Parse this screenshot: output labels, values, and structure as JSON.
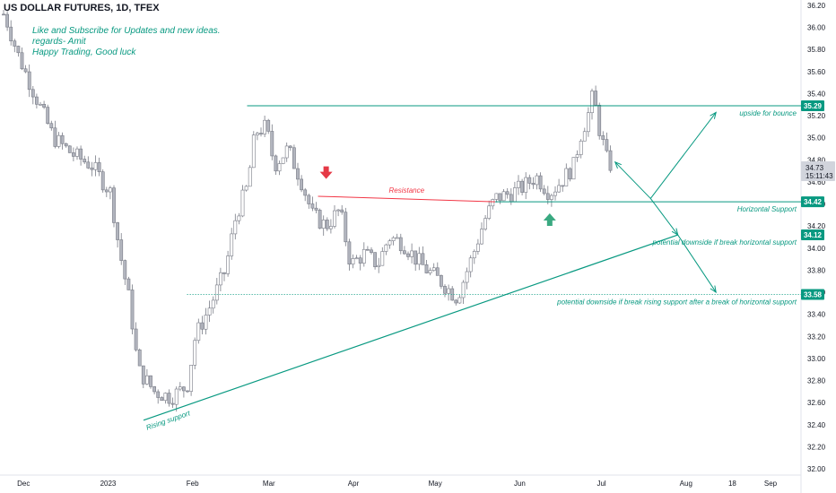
{
  "header": {
    "title": "US DOLLAR FUTURES, 1D, TFEX"
  },
  "notes": {
    "line1": "Like and Subscribe for Updates and new ideas.",
    "line2": "regards- Amit",
    "line3": "Happy Trading, Good luck"
  },
  "colors": {
    "line": "#089981",
    "resistance": "#f23645",
    "candle_up": "#ffffff",
    "candle_down": "#b2b5be",
    "candle_border": "#787b86",
    "arrow_down": "#e53946",
    "arrow_up": "#3aa981",
    "price_tag": "#089981",
    "current_tag": "#d1d4dc"
  },
  "chart_data": {
    "type": "candlestick",
    "ylim": [
      32.0,
      36.2
    ],
    "y_ticks": [
      "36.20",
      "36.00",
      "35.80",
      "35.60",
      "35.40",
      "35.20",
      "35.00",
      "34.80",
      "34.60",
      "34.40",
      "34.20",
      "34.00",
      "33.80",
      "33.60",
      "33.40",
      "33.20",
      "33.00",
      "32.80",
      "32.60",
      "32.40",
      "32.20",
      "32.00"
    ],
    "x_ticks": [
      {
        "label": "Dec",
        "date": "2022-12-01"
      },
      {
        "label": "2023",
        "date": "2023-01-01"
      },
      {
        "label": "Feb",
        "date": "2023-02-01"
      },
      {
        "label": "Mar",
        "date": "2023-03-01"
      },
      {
        "label": "Apr",
        "date": "2023-04-01"
      },
      {
        "label": "May",
        "date": "2023-05-01"
      },
      {
        "label": "Jun",
        "date": "2023-06-01"
      },
      {
        "label": "Jul",
        "date": "2023-07-01"
      },
      {
        "label": "Aug",
        "date": "2023-08-01"
      },
      {
        "label": "18",
        "date": "2023-08-18"
      },
      {
        "label": "Sep",
        "date": "2023-09-01"
      }
    ],
    "closes": [
      {
        "date": "2022-11-24",
        "close": 36.12
      },
      {
        "date": "2022-11-29",
        "close": 35.75
      },
      {
        "date": "2022-12-05",
        "close": 35.4
      },
      {
        "date": "2022-12-12",
        "close": 35.0
      },
      {
        "date": "2022-12-19",
        "close": 34.85
      },
      {
        "date": "2022-12-26",
        "close": 34.75
      },
      {
        "date": "2023-01-02",
        "close": 34.5
      },
      {
        "date": "2023-01-05",
        "close": 34.0
      },
      {
        "date": "2023-01-09",
        "close": 33.5
      },
      {
        "date": "2023-01-12",
        "close": 32.9
      },
      {
        "date": "2023-01-18",
        "close": 32.7
      },
      {
        "date": "2023-01-24",
        "close": 32.65
      },
      {
        "date": "2023-01-30",
        "close": 32.75
      },
      {
        "date": "2023-02-02",
        "close": 33.2
      },
      {
        "date": "2023-02-07",
        "close": 33.45
      },
      {
        "date": "2023-02-13",
        "close": 33.8
      },
      {
        "date": "2023-02-17",
        "close": 34.3
      },
      {
        "date": "2023-02-21",
        "close": 34.55
      },
      {
        "date": "2023-02-24",
        "close": 35.05
      },
      {
        "date": "2023-02-28",
        "close": 35.1
      },
      {
        "date": "2023-03-03",
        "close": 34.75
      },
      {
        "date": "2023-03-08",
        "close": 34.9
      },
      {
        "date": "2023-03-13",
        "close": 34.6
      },
      {
        "date": "2023-03-17",
        "close": 34.3
      },
      {
        "date": "2023-03-22",
        "close": 34.2
      },
      {
        "date": "2023-03-27",
        "close": 34.35
      },
      {
        "date": "2023-03-31",
        "close": 33.85
      },
      {
        "date": "2023-04-05",
        "close": 33.95
      },
      {
        "date": "2023-04-10",
        "close": 33.85
      },
      {
        "date": "2023-04-14",
        "close": 34.1
      },
      {
        "date": "2023-04-19",
        "close": 34.05
      },
      {
        "date": "2023-04-24",
        "close": 33.9
      },
      {
        "date": "2023-04-28",
        "close": 33.8
      },
      {
        "date": "2023-05-03",
        "close": 33.7
      },
      {
        "date": "2023-05-09",
        "close": 33.55
      },
      {
        "date": "2023-05-15",
        "close": 33.95
      },
      {
        "date": "2023-05-19",
        "close": 34.25
      },
      {
        "date": "2023-05-23",
        "close": 34.45
      },
      {
        "date": "2023-05-29",
        "close": 34.5
      },
      {
        "date": "2023-06-02",
        "close": 34.55
      },
      {
        "date": "2023-06-07",
        "close": 34.65
      },
      {
        "date": "2023-06-12",
        "close": 34.5
      },
      {
        "date": "2023-06-16",
        "close": 34.6
      },
      {
        "date": "2023-06-21",
        "close": 34.75
      },
      {
        "date": "2023-06-23",
        "close": 35.0
      },
      {
        "date": "2023-06-26",
        "close": 35.2
      },
      {
        "date": "2023-06-28",
        "close": 35.4
      },
      {
        "date": "2023-06-30",
        "close": 35.1
      },
      {
        "date": "2023-07-03",
        "close": 34.8
      },
      {
        "date": "2023-07-05",
        "close": 34.73
      }
    ],
    "levels": [
      {
        "name": "upside-for-bounce",
        "value": 35.29,
        "label": "upside for bounce",
        "tag": "35.29"
      },
      {
        "name": "horizontal-support",
        "value": 34.42,
        "label": "Horizontal Support",
        "tag": "34.42"
      },
      {
        "name": "potential-downside-1",
        "value": 34.12,
        "label": "potential downside if break horizontal support",
        "tag": "34.12"
      },
      {
        "name": "potential-downside-2",
        "value": 33.58,
        "label": "potential downside if break rising support after a break of horizontal support",
        "tag": "33.58"
      }
    ],
    "current_price": {
      "value": "34.73",
      "countdown": "15:11:43"
    },
    "resistance": {
      "label": "Resistance",
      "from": {
        "date": "2023-03-19",
        "value": 34.47
      },
      "to": {
        "date": "2023-05-23",
        "value": 34.42
      }
    },
    "rising_support": {
      "label": "Rising support",
      "from": {
        "date": "2023-01-14",
        "value": 32.44
      },
      "to": {
        "date": "2023-07-29",
        "value": 34.12
      }
    },
    "annotations": [
      "Resistance",
      "Rising support",
      "upside for bounce",
      "Horizontal Support",
      "potential downside if break horizontal support",
      "potential downside if break rising support after a break of horizontal support"
    ]
  }
}
